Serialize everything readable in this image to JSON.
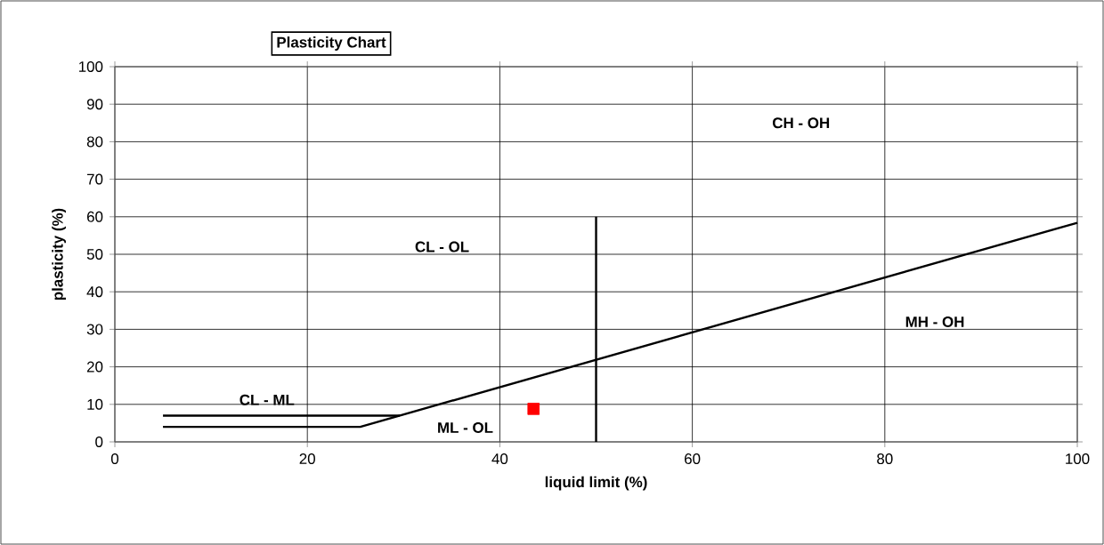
{
  "chart_data": {
    "type": "line",
    "title": "Plasticity Chart",
    "xlabel": "liquid limit (%)",
    "ylabel": "plasticity (%)",
    "xlim": [
      0,
      100
    ],
    "ylim": [
      0,
      100
    ],
    "xticks": [
      0,
      20,
      40,
      60,
      80,
      100
    ],
    "yticks": [
      0,
      10,
      20,
      30,
      40,
      50,
      60,
      70,
      80,
      90,
      100
    ],
    "grid": true,
    "series": [
      {
        "color": "#000000",
        "x": [
          5,
          25.5,
          100
        ],
        "values": [
          4,
          4,
          58.4
        ]
      },
      {
        "color": "#000000",
        "x": [
          5,
          29.6
        ],
        "values": [
          7,
          7
        ]
      },
      {
        "color": "#000000",
        "x": [
          50,
          50
        ],
        "values": [
          0,
          60
        ]
      },
      {
        "type": "scatter",
        "color": "#ff0000",
        "marker": "square",
        "x": [
          43.5
        ],
        "values": [
          8.8
        ]
      }
    ],
    "annotations": [
      "CH - OH",
      "CL - OL",
      "MH - OH",
      "CL - ML",
      "ML - OL"
    ]
  }
}
